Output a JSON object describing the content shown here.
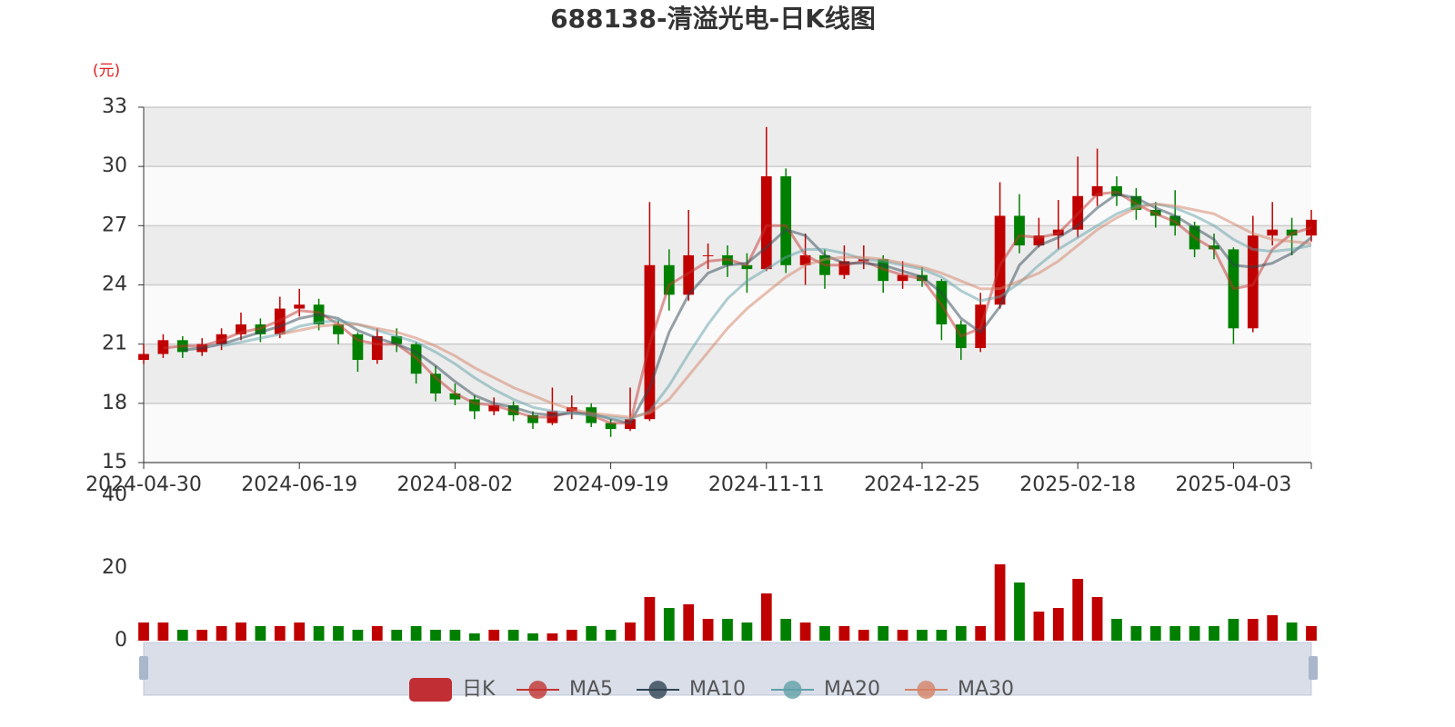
{
  "chart_data": {
    "type": "candlestick",
    "title": "688138-清溢光电-日K线图",
    "y_unit": "(元)",
    "categories": [
      "2024-04-30",
      null,
      null,
      null,
      null,
      null,
      null,
      null,
      "2024-06-19",
      null,
      null,
      null,
      null,
      null,
      null,
      null,
      "2024-08-02",
      null,
      null,
      null,
      null,
      null,
      null,
      null,
      "2024-09-19",
      null,
      null,
      null,
      null,
      null,
      null,
      null,
      "2024-11-11",
      null,
      null,
      null,
      null,
      null,
      null,
      null,
      "2024-12-25",
      null,
      null,
      null,
      null,
      null,
      null,
      null,
      "2025-02-18",
      null,
      null,
      null,
      null,
      null,
      null,
      null,
      "2025-04-03",
      null,
      null,
      null,
      null
    ],
    "ylim": [
      15,
      33
    ],
    "yticks": [
      15,
      18,
      21,
      24,
      27,
      30,
      33
    ],
    "grid": true,
    "series": [
      {
        "name": "日K",
        "type": "candlestick",
        "color": "#c12e34",
        "up_color": "#c00000",
        "down_color": "#008000",
        "values": [
          [
            20.2,
            20.5,
            20.0,
            21.0
          ],
          [
            20.5,
            21.2,
            20.3,
            21.5
          ],
          [
            21.2,
            20.6,
            20.3,
            21.4
          ],
          [
            20.6,
            21.0,
            20.4,
            21.3
          ],
          [
            21.0,
            21.5,
            20.7,
            21.8
          ],
          [
            21.5,
            22.0,
            21.2,
            22.6
          ],
          [
            22.0,
            21.5,
            21.1,
            22.3
          ],
          [
            21.5,
            22.8,
            21.3,
            23.4
          ],
          [
            22.8,
            23.0,
            22.4,
            23.8
          ],
          [
            23.0,
            22.0,
            21.7,
            23.3
          ],
          [
            22.0,
            21.5,
            21.0,
            22.2
          ],
          [
            21.5,
            20.2,
            19.6,
            21.6
          ],
          [
            20.2,
            21.4,
            20.0,
            21.8
          ],
          [
            21.4,
            21.0,
            20.6,
            21.8
          ],
          [
            21.0,
            19.5,
            19.0,
            21.1
          ],
          [
            19.5,
            18.5,
            18.1,
            19.9
          ],
          [
            18.5,
            18.2,
            17.9,
            19.0
          ],
          [
            18.2,
            17.6,
            17.2,
            18.4
          ],
          [
            17.6,
            17.9,
            17.4,
            18.3
          ],
          [
            17.9,
            17.4,
            17.1,
            18.1
          ],
          [
            17.4,
            17.0,
            16.7,
            17.6
          ],
          [
            17.0,
            17.6,
            16.9,
            18.8
          ],
          [
            17.6,
            17.8,
            17.2,
            18.4
          ],
          [
            17.8,
            17.0,
            16.8,
            18.0
          ],
          [
            17.0,
            16.7,
            16.3,
            17.2
          ],
          [
            16.7,
            17.2,
            16.6,
            18.8
          ],
          [
            17.2,
            25.0,
            17.1,
            28.2
          ],
          [
            25.0,
            23.5,
            22.7,
            25.8
          ],
          [
            23.5,
            25.5,
            23.2,
            27.8
          ],
          [
            25.5,
            25.5,
            24.8,
            26.1
          ],
          [
            25.5,
            25.0,
            24.4,
            26.0
          ],
          [
            25.0,
            24.8,
            23.6,
            25.6
          ],
          [
            24.8,
            29.5,
            24.7,
            32.0
          ],
          [
            29.5,
            25.0,
            24.6,
            29.9
          ],
          [
            25.0,
            25.5,
            24.0,
            26.6
          ],
          [
            25.5,
            24.5,
            23.8,
            25.8
          ],
          [
            24.5,
            25.2,
            24.3,
            26.0
          ],
          [
            25.2,
            25.3,
            24.8,
            26.0
          ],
          [
            25.3,
            24.2,
            23.6,
            25.5
          ],
          [
            24.2,
            24.5,
            23.8,
            25.2
          ],
          [
            24.5,
            24.2,
            23.9,
            24.9
          ],
          [
            24.2,
            22.0,
            21.2,
            24.3
          ],
          [
            22.0,
            20.8,
            20.2,
            22.2
          ],
          [
            20.8,
            23.0,
            20.6,
            23.6
          ],
          [
            23.0,
            27.5,
            22.8,
            29.2
          ],
          [
            27.5,
            26.0,
            25.6,
            28.6
          ],
          [
            26.0,
            26.5,
            25.9,
            27.4
          ],
          [
            26.5,
            26.8,
            25.8,
            28.3
          ],
          [
            26.8,
            28.5,
            26.4,
            30.5
          ],
          [
            28.5,
            29.0,
            28.0,
            30.9
          ],
          [
            29.0,
            28.5,
            28.0,
            29.5
          ],
          [
            28.5,
            27.8,
            27.3,
            28.9
          ],
          [
            27.8,
            27.5,
            26.9,
            28.2
          ],
          [
            27.5,
            27.0,
            26.5,
            28.8
          ],
          [
            27.0,
            25.8,
            25.4,
            27.2
          ],
          [
            26.0,
            25.8,
            25.3,
            26.6
          ],
          [
            25.8,
            21.8,
            21.0,
            25.9
          ],
          [
            21.8,
            26.5,
            21.6,
            27.5
          ],
          [
            26.5,
            26.8,
            26.0,
            28.2
          ],
          [
            26.8,
            26.5,
            25.5,
            27.4
          ],
          [
            26.5,
            27.3,
            26.2,
            27.8
          ]
        ]
      },
      {
        "name": "MA5",
        "type": "line",
        "color": "#c23531",
        "values": [
          null,
          20.8,
          20.9,
          20.9,
          21.2,
          21.6,
          21.8,
          22.2,
          22.7,
          22.6,
          22.0,
          21.2,
          21.0,
          21.0,
          20.3,
          19.3,
          18.5,
          18.0,
          17.9,
          17.6,
          17.3,
          17.3,
          17.6,
          17.4,
          17.0,
          17.0,
          21.0,
          24.0,
          24.6,
          25.2,
          25.3,
          25.0,
          27.0,
          27.0,
          25.5,
          25.0,
          25.0,
          25.2,
          24.8,
          24.5,
          24.3,
          23.0,
          21.4,
          21.8,
          25.0,
          26.5,
          26.4,
          26.6,
          27.6,
          28.6,
          28.7,
          28.1,
          27.6,
          27.2,
          26.4,
          25.8,
          23.8,
          24.0,
          25.8,
          26.6,
          26.9
        ]
      },
      {
        "name": "MA10",
        "type": "line",
        "color": "#2f4554",
        "values": [
          null,
          null,
          20.7,
          20.8,
          21.0,
          21.3,
          21.6,
          21.9,
          22.3,
          22.5,
          22.3,
          21.7,
          21.3,
          21.0,
          20.6,
          19.9,
          19.1,
          18.4,
          18.0,
          17.8,
          17.5,
          17.4,
          17.5,
          17.5,
          17.2,
          17.0,
          18.8,
          21.6,
          23.5,
          24.6,
          25.0,
          25.1,
          25.9,
          26.8,
          26.5,
          25.5,
          25.1,
          25.1,
          25.0,
          24.7,
          24.4,
          23.6,
          22.3,
          21.6,
          22.9,
          25.0,
          26.0,
          26.4,
          27.0,
          27.9,
          28.6,
          28.4,
          27.9,
          27.5,
          26.9,
          26.3,
          25.0,
          24.9,
          25.1,
          25.6,
          26.4
        ]
      },
      {
        "name": "MA20",
        "type": "line",
        "color": "#61a0a8",
        "values": [
          null,
          null,
          null,
          null,
          20.9,
          21.1,
          21.3,
          21.5,
          21.9,
          22.1,
          22.2,
          22.0,
          21.7,
          21.4,
          21.1,
          20.6,
          20.0,
          19.3,
          18.7,
          18.2,
          17.8,
          17.6,
          17.5,
          17.4,
          17.3,
          17.2,
          17.6,
          18.9,
          20.5,
          22.0,
          23.3,
          24.2,
          24.8,
          25.4,
          25.8,
          25.8,
          25.6,
          25.3,
          25.2,
          25.0,
          24.8,
          24.4,
          23.7,
          23.2,
          23.4,
          24.1,
          25.0,
          25.8,
          26.4,
          27.0,
          27.6,
          28.0,
          28.1,
          27.9,
          27.5,
          27.0,
          26.3,
          25.8,
          25.7,
          25.8,
          26.0
        ]
      },
      {
        "name": "MA30",
        "type": "line",
        "color": "#d48265",
        "values": [
          null,
          null,
          null,
          null,
          null,
          null,
          null,
          21.5,
          21.7,
          21.9,
          22.0,
          22.0,
          21.8,
          21.6,
          21.3,
          20.9,
          20.4,
          19.8,
          19.3,
          18.8,
          18.4,
          18.0,
          17.7,
          17.5,
          17.4,
          17.3,
          17.5,
          18.2,
          19.4,
          20.6,
          21.8,
          22.8,
          23.6,
          24.4,
          25.0,
          25.3,
          25.4,
          25.4,
          25.3,
          25.1,
          24.9,
          24.6,
          24.2,
          23.8,
          23.8,
          24.2,
          24.6,
          25.2,
          26.0,
          26.8,
          27.4,
          27.9,
          28.1,
          28.0,
          27.8,
          27.6,
          27.1,
          26.6,
          26.3,
          26.2,
          26.1
        ]
      }
    ],
    "volume": {
      "ylim": [
        0,
        40
      ],
      "yticks": [
        0,
        20,
        40
      ],
      "values": [
        5,
        5,
        3,
        3,
        4,
        5,
        4,
        4,
        5,
        4,
        4,
        3,
        4,
        3,
        4,
        3,
        3,
        2,
        3,
        3,
        2,
        2,
        3,
        4,
        3,
        5,
        12,
        9,
        10,
        6,
        6,
        5,
        13,
        6,
        5,
        4,
        4,
        3,
        4,
        3,
        3,
        3,
        4,
        4,
        21,
        16,
        8,
        9,
        17,
        12,
        6,
        4,
        4,
        4,
        4,
        4,
        6,
        6,
        7,
        5,
        4
      ]
    }
  }
}
